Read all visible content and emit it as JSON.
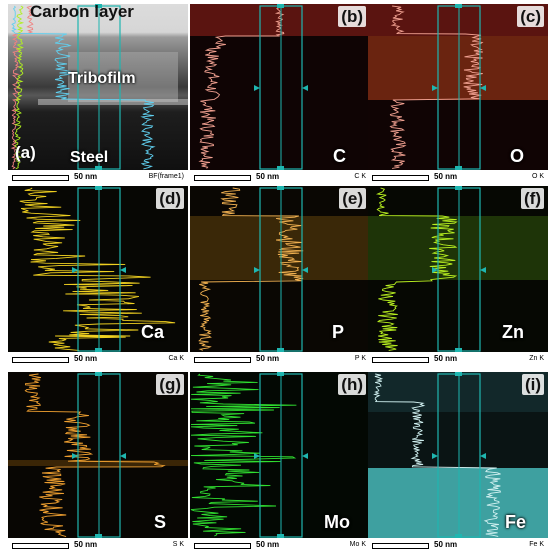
{
  "panels": [
    {
      "letter": "(a)",
      "element": "Steel",
      "scale": "50 nm",
      "map": "BF(frame1)"
    },
    {
      "letter": "(b)",
      "element": "C",
      "scale": "50 nm",
      "map": "C K"
    },
    {
      "letter": "(c)",
      "element": "O",
      "scale": "50 nm",
      "map": "O K"
    },
    {
      "letter": "(d)",
      "element": "Ca",
      "scale": "50 nm",
      "map": "Ca K"
    },
    {
      "letter": "(e)",
      "element": "P",
      "scale": "50 nm",
      "map": "P K"
    },
    {
      "letter": "(f)",
      "element": "Zn",
      "scale": "50 nm",
      "map": "Zn K"
    },
    {
      "letter": "(g)",
      "element": "S",
      "scale": "50 nm",
      "map": "S K"
    },
    {
      "letter": "(h)",
      "element": "Mo",
      "scale": "50 nm",
      "map": "Mo K"
    },
    {
      "letter": "(i)",
      "element": "Fe",
      "scale": "50 nm",
      "map": "Fe K"
    }
  ],
  "labels": {
    "carbon_layer": "Carbon layer",
    "tribofilm": "Tribofilm"
  },
  "colors": {
    "box": "#1fb6b0",
    "C": "#f0a090",
    "O": "#f0a090",
    "Ca": "#f0d020",
    "P": "#f0b050",
    "Zn": "#b8f020",
    "S": "#f0a030",
    "Mo": "#30e030",
    "Fe": "#d0f0f0"
  }
}
